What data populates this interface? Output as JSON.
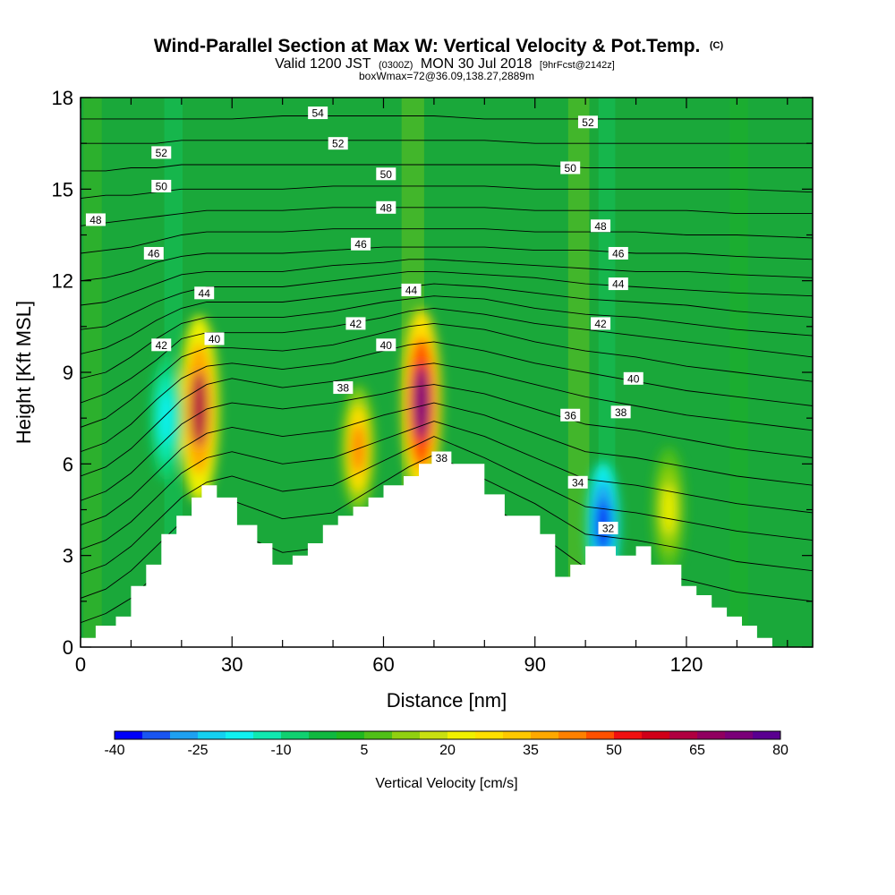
{
  "header": {
    "title_main": "Wind-Parallel Section at Max W: Vertical Velocity & Pot.Temp.",
    "title_mark": "(C)",
    "valid_prefix": "Valid 1200 JST",
    "valid_zulu": "(0300Z)",
    "valid_date": "MON 30 Jul 2018",
    "valid_fcst": "[9hrFcst@2142z]",
    "box_info": "boxWmax=72@36.09,138.27,2889m"
  },
  "colors": {
    "background": "#1aa83a",
    "terrain": "#ffffff",
    "contour": "#000000",
    "scale": [
      "#0000f8",
      "#1a55f0",
      "#1ea0f0",
      "#14d0f0",
      "#10f0f0",
      "#10e8b0",
      "#10d070",
      "#10b840",
      "#20b820",
      "#50c018",
      "#90d010",
      "#c8e010",
      "#f0f000",
      "#ffe000",
      "#ffc800",
      "#ffa800",
      "#ff8000",
      "#ff5000",
      "#f01010",
      "#d00018",
      "#b00040",
      "#900060",
      "#7a0078",
      "#5a0090"
    ]
  },
  "chart_data": {
    "type": "heatmap",
    "xlabel": "Distance [nm]",
    "ylabel": "Height [Kft MSL]",
    "xlim": [
      0,
      145
    ],
    "ylim": [
      0,
      18
    ],
    "x_ticks": [
      0,
      30,
      60,
      90,
      120
    ],
    "y_ticks": [
      0,
      3,
      6,
      9,
      12,
      15,
      18
    ],
    "colorbar": {
      "label": "Vertical Velocity [cm/s]",
      "ticks": [
        -40,
        -25,
        -10,
        5,
        20,
        35,
        50,
        65,
        80
      ],
      "min": -40,
      "max": 80
    },
    "terrain_profile": {
      "x": [
        0,
        3,
        3,
        7,
        7,
        10,
        10,
        13,
        13,
        16,
        16,
        19,
        19,
        22,
        22,
        24,
        24,
        27,
        27,
        31,
        31,
        35,
        35,
        38,
        38,
        42,
        42,
        45,
        45,
        48,
        48,
        51,
        51,
        54,
        54,
        57,
        57,
        60,
        60,
        64,
        64,
        67,
        67,
        70,
        70,
        73,
        73,
        80,
        80,
        84,
        84,
        87,
        87,
        91,
        91,
        94,
        94,
        97,
        97,
        100,
        100,
        103,
        103,
        106,
        106,
        110,
        110,
        113,
        113,
        119,
        119,
        122,
        122,
        125,
        125,
        128,
        128,
        131,
        131,
        134,
        134,
        137,
        137,
        140,
        140,
        145
      ],
      "y": [
        0.3,
        0.3,
        0.7,
        0.7,
        1.0,
        1.0,
        2.0,
        2.0,
        2.7,
        2.7,
        3.7,
        3.7,
        4.3,
        4.3,
        4.9,
        4.9,
        5.3,
        5.3,
        4.9,
        4.9,
        4.0,
        4.0,
        3.4,
        3.4,
        2.7,
        2.7,
        3.0,
        3.0,
        3.4,
        3.4,
        4.0,
        4.0,
        4.3,
        4.3,
        4.6,
        4.6,
        4.9,
        4.9,
        5.3,
        5.3,
        5.6,
        5.6,
        6.0,
        6.0,
        6.0,
        6.0,
        6.0,
        6.0,
        5.0,
        5.0,
        4.3,
        4.3,
        4.3,
        4.3,
        3.7,
        3.7,
        2.3,
        2.3,
        2.7,
        2.7,
        3.3,
        3.3,
        3.3,
        3.3,
        3.0,
        3.0,
        3.3,
        3.3,
        2.7,
        2.7,
        2.0,
        2.0,
        1.7,
        1.7,
        1.3,
        1.3,
        1.0,
        1.0,
        0.7,
        0.7,
        0.3,
        0.3,
        0.0,
        0.0,
        0.0,
        0.0
      ]
    },
    "velocity_features": [
      {
        "x": 67.5,
        "y": 8.0,
        "value": 72
      },
      {
        "x": 23.5,
        "y": 7.8,
        "value": 60
      },
      {
        "x": 55,
        "y": 6.5,
        "value": 40
      },
      {
        "x": 17,
        "y": 7.5,
        "value": -20
      },
      {
        "x": 103.5,
        "y": 4.0,
        "value": -40
      },
      {
        "x": 116.5,
        "y": 4.5,
        "value": 20
      }
    ],
    "theta_contours": [
      {
        "x": [
          0,
          5,
          10,
          15,
          20,
          25,
          30,
          40,
          50,
          60,
          65,
          70,
          80,
          90,
          100,
          110,
          120,
          130,
          145
        ],
        "y": [
          0.8,
          1.1,
          1.6,
          2.4,
          3.2,
          3.7,
          3.8,
          3.1,
          3.3,
          4.6,
          5.2,
          5.8,
          4.7,
          3.8,
          2.6,
          2.5,
          2.2,
          1.8,
          1.5
        ]
      },
      {
        "x": [
          0,
          5,
          10,
          15,
          20,
          25,
          30,
          40,
          50,
          60,
          65,
          70,
          80,
          90,
          100,
          110,
          120,
          130,
          145
        ],
        "y": [
          1.6,
          1.9,
          2.5,
          3.3,
          4.1,
          4.6,
          4.8,
          4.2,
          4.4,
          5.4,
          5.9,
          6.3,
          5.5,
          4.7,
          3.7,
          3.5,
          3.2,
          2.8,
          2.5
        ]
      },
      {
        "x": [
          0,
          5,
          10,
          15,
          20,
          25,
          30,
          40,
          50,
          60,
          65,
          70,
          80,
          90,
          100,
          110,
          120,
          130,
          145
        ],
        "y": [
          2.4,
          2.7,
          3.3,
          4.1,
          4.9,
          5.4,
          5.6,
          5.1,
          5.3,
          6.1,
          6.5,
          6.9,
          6.2,
          5.4,
          4.6,
          4.4,
          4.1,
          3.8,
          3.5
        ]
      },
      {
        "x": [
          0,
          5,
          10,
          15,
          20,
          25,
          30,
          40,
          50,
          60,
          65,
          70,
          80,
          90,
          100,
          110,
          120,
          130,
          145
        ],
        "y": [
          3.2,
          3.5,
          4.1,
          4.9,
          5.7,
          6.2,
          6.4,
          6.0,
          6.2,
          6.8,
          7.1,
          7.4,
          6.9,
          6.2,
          5.5,
          5.3,
          5.0,
          4.7,
          4.4
        ]
      },
      {
        "x": [
          0,
          5,
          10,
          15,
          20,
          25,
          30,
          40,
          50,
          60,
          65,
          70,
          80,
          90,
          100,
          110,
          120,
          130,
          145
        ],
        "y": [
          4.0,
          4.3,
          4.9,
          5.7,
          6.5,
          7.0,
          7.2,
          6.9,
          7.1,
          7.6,
          7.8,
          8.0,
          7.6,
          7.0,
          6.4,
          6.2,
          5.9,
          5.6,
          5.3
        ]
      },
      {
        "x": [
          0,
          5,
          10,
          15,
          20,
          25,
          30,
          40,
          50,
          60,
          65,
          70,
          80,
          90,
          100,
          110,
          120,
          130,
          145
        ],
        "y": [
          4.8,
          5.1,
          5.7,
          6.5,
          7.3,
          7.8,
          8.0,
          7.8,
          8.0,
          8.3,
          8.5,
          8.6,
          8.3,
          7.8,
          7.3,
          7.1,
          6.8,
          6.5,
          6.2
        ]
      },
      {
        "x": [
          0,
          5,
          10,
          15,
          20,
          25,
          30,
          40,
          50,
          60,
          65,
          70,
          80,
          90,
          100,
          110,
          120,
          130,
          145
        ],
        "y": [
          5.6,
          5.9,
          6.5,
          7.3,
          8.1,
          8.6,
          8.8,
          8.5,
          8.7,
          9.0,
          9.2,
          9.3,
          9.0,
          8.6,
          8.2,
          7.9,
          7.6,
          7.4,
          7.1
        ]
      },
      {
        "x": [
          0,
          5,
          10,
          15,
          20,
          25,
          30,
          40,
          50,
          60,
          65,
          70,
          80,
          90,
          100,
          110,
          120,
          130,
          145
        ],
        "y": [
          6.4,
          6.7,
          7.3,
          8.1,
          8.8,
          9.2,
          9.3,
          9.1,
          9.3,
          9.7,
          9.9,
          10.0,
          9.7,
          9.3,
          9.0,
          8.7,
          8.4,
          8.2,
          7.9
        ]
      },
      {
        "x": [
          0,
          5,
          10,
          15,
          20,
          25,
          30,
          40,
          50,
          60,
          65,
          70,
          80,
          90,
          100,
          110,
          120,
          130,
          145
        ],
        "y": [
          7.2,
          7.5,
          8.1,
          8.8,
          9.5,
          9.8,
          9.8,
          9.7,
          9.9,
          10.3,
          10.5,
          10.6,
          10.4,
          10.0,
          9.7,
          9.5,
          9.2,
          9.0,
          8.7
        ]
      },
      {
        "x": [
          0,
          5,
          10,
          15,
          20,
          25,
          30,
          40,
          50,
          60,
          65,
          70,
          80,
          90,
          100,
          110,
          120,
          130,
          145
        ],
        "y": [
          8.0,
          8.3,
          8.8,
          9.4,
          10.1,
          10.3,
          10.3,
          10.3,
          10.5,
          10.8,
          11.0,
          11.1,
          10.9,
          10.6,
          10.4,
          10.2,
          10.0,
          9.8,
          9.5
        ]
      },
      {
        "x": [
          0,
          5,
          10,
          15,
          20,
          25,
          30,
          40,
          50,
          60,
          65,
          70,
          80,
          90,
          100,
          110,
          120,
          130,
          145
        ],
        "y": [
          8.8,
          9.0,
          9.5,
          10.1,
          10.6,
          10.8,
          10.8,
          10.8,
          11.0,
          11.3,
          11.4,
          11.5,
          11.4,
          11.1,
          10.9,
          10.8,
          10.6,
          10.4,
          10.2
        ]
      },
      {
        "x": [
          0,
          5,
          10,
          15,
          20,
          25,
          30,
          40,
          50,
          60,
          65,
          70,
          80,
          90,
          100,
          110,
          120,
          130,
          145
        ],
        "y": [
          9.6,
          9.8,
          10.2,
          10.7,
          11.1,
          11.3,
          11.3,
          11.3,
          11.5,
          11.7,
          11.8,
          11.9,
          11.8,
          11.6,
          11.4,
          11.3,
          11.2,
          11.0,
          10.8
        ]
      },
      {
        "x": [
          0,
          5,
          10,
          15,
          20,
          25,
          30,
          40,
          50,
          60,
          65,
          70,
          80,
          90,
          100,
          110,
          120,
          130,
          145
        ],
        "y": [
          10.4,
          10.5,
          10.9,
          11.3,
          11.6,
          11.8,
          11.8,
          11.8,
          12.0,
          12.2,
          12.3,
          12.3,
          12.2,
          12.1,
          11.9,
          11.8,
          11.7,
          11.6,
          11.5
        ]
      },
      {
        "x": [
          0,
          5,
          10,
          15,
          20,
          25,
          30,
          40,
          50,
          60,
          65,
          70,
          80,
          90,
          100,
          110,
          120,
          130,
          145
        ],
        "y": [
          11.2,
          11.3,
          11.6,
          11.9,
          12.2,
          12.3,
          12.3,
          12.3,
          12.5,
          12.6,
          12.7,
          12.7,
          12.6,
          12.5,
          12.4,
          12.3,
          12.3,
          12.2,
          12.1
        ]
      },
      {
        "x": [
          0,
          5,
          10,
          15,
          20,
          25,
          30,
          40,
          50,
          60,
          65,
          70,
          80,
          90,
          100,
          110,
          120,
          130,
          145
        ],
        "y": [
          12.0,
          12.1,
          12.3,
          12.6,
          12.8,
          12.9,
          12.9,
          12.9,
          13.0,
          13.1,
          13.1,
          13.1,
          13.1,
          13.0,
          13.0,
          12.9,
          12.9,
          12.8,
          12.7
        ]
      },
      {
        "x": [
          0,
          5,
          10,
          15,
          20,
          25,
          30,
          40,
          50,
          60,
          65,
          70,
          80,
          90,
          100,
          110,
          120,
          130,
          145
        ],
        "y": [
          12.9,
          13.0,
          13.1,
          13.3,
          13.5,
          13.6,
          13.6,
          13.6,
          13.7,
          13.7,
          13.7,
          13.7,
          13.7,
          13.6,
          13.6,
          13.6,
          13.5,
          13.5,
          13.4
        ]
      },
      {
        "x": [
          0,
          5,
          10,
          15,
          20,
          25,
          30,
          40,
          50,
          60,
          65,
          70,
          80,
          90,
          100,
          110,
          120,
          130,
          145
        ],
        "y": [
          13.8,
          13.9,
          14.0,
          14.1,
          14.2,
          14.3,
          14.3,
          14.3,
          14.4,
          14.4,
          14.4,
          14.4,
          14.4,
          14.3,
          14.3,
          14.3,
          14.3,
          14.2,
          14.2
        ]
      },
      {
        "x": [
          0,
          5,
          10,
          15,
          20,
          25,
          30,
          40,
          50,
          60,
          65,
          70,
          80,
          90,
          100,
          110,
          120,
          130,
          145
        ],
        "y": [
          14.7,
          14.8,
          14.8,
          14.9,
          15.0,
          15.0,
          15.0,
          15.0,
          15.1,
          15.1,
          15.1,
          15.1,
          15.1,
          15.0,
          15.0,
          15.0,
          15.0,
          15.0,
          14.9
        ]
      },
      {
        "x": [
          0,
          5,
          10,
          15,
          20,
          25,
          30,
          40,
          50,
          60,
          65,
          70,
          80,
          90,
          100,
          110,
          120,
          130,
          145
        ],
        "y": [
          15.6,
          15.6,
          15.7,
          15.7,
          15.8,
          15.8,
          15.8,
          15.8,
          15.8,
          15.8,
          15.8,
          15.8,
          15.8,
          15.8,
          15.7,
          15.7,
          15.7,
          15.7,
          15.7
        ]
      },
      {
        "x": [
          0,
          5,
          10,
          15,
          20,
          25,
          30,
          40,
          50,
          60,
          65,
          70,
          80,
          90,
          100,
          110,
          120,
          130,
          145
        ],
        "y": [
          16.5,
          16.5,
          16.5,
          16.5,
          16.6,
          16.6,
          16.6,
          16.6,
          16.6,
          16.6,
          16.6,
          16.6,
          16.6,
          16.5,
          16.5,
          16.5,
          16.5,
          16.5,
          16.5
        ]
      },
      {
        "x": [
          0,
          5,
          10,
          15,
          20,
          25,
          30,
          40,
          50,
          60,
          65,
          70,
          80,
          90,
          100,
          110,
          120,
          130,
          145
        ],
        "y": [
          17.3,
          17.3,
          17.3,
          17.3,
          17.3,
          17.3,
          17.3,
          17.4,
          17.4,
          17.4,
          17.4,
          17.4,
          17.3,
          17.3,
          17.3,
          17.3,
          17.3,
          17.3,
          17.3
        ]
      }
    ],
    "contour_labels": [
      {
        "text": "54",
        "x": 47,
        "y": 17.5
      },
      {
        "text": "52",
        "x": 16,
        "y": 16.2
      },
      {
        "text": "52",
        "x": 51,
        "y": 16.5
      },
      {
        "text": "52",
        "x": 100.5,
        "y": 17.2
      },
      {
        "text": "50",
        "x": 16,
        "y": 15.1
      },
      {
        "text": "50",
        "x": 60.5,
        "y": 15.5
      },
      {
        "text": "50",
        "x": 97,
        "y": 15.7
      },
      {
        "text": "48",
        "x": 3,
        "y": 14.0
      },
      {
        "text": "48",
        "x": 60.5,
        "y": 14.4
      },
      {
        "text": "48",
        "x": 103,
        "y": 13.8
      },
      {
        "text": "46",
        "x": 14.5,
        "y": 12.9
      },
      {
        "text": "46",
        "x": 55.5,
        "y": 13.2
      },
      {
        "text": "46",
        "x": 106.5,
        "y": 12.9
      },
      {
        "text": "44",
        "x": 24.5,
        "y": 11.6
      },
      {
        "text": "44",
        "x": 65.5,
        "y": 11.7
      },
      {
        "text": "44",
        "x": 106.5,
        "y": 11.9
      },
      {
        "text": "42",
        "x": 16,
        "y": 9.9
      },
      {
        "text": "42",
        "x": 54.5,
        "y": 10.6
      },
      {
        "text": "42",
        "x": 103,
        "y": 10.6
      },
      {
        "text": "40",
        "x": 26.5,
        "y": 10.1
      },
      {
        "text": "40",
        "x": 60.5,
        "y": 9.9
      },
      {
        "text": "40",
        "x": 109.5,
        "y": 8.8
      },
      {
        "text": "38",
        "x": 52,
        "y": 8.5
      },
      {
        "text": "38",
        "x": 71.5,
        "y": 6.2
      },
      {
        "text": "38",
        "x": 107,
        "y": 7.7
      },
      {
        "text": "36",
        "x": 97,
        "y": 7.6
      },
      {
        "text": "34",
        "x": 98.5,
        "y": 5.4
      },
      {
        "text": "32",
        "x": 104.5,
        "y": 3.9
      }
    ]
  }
}
